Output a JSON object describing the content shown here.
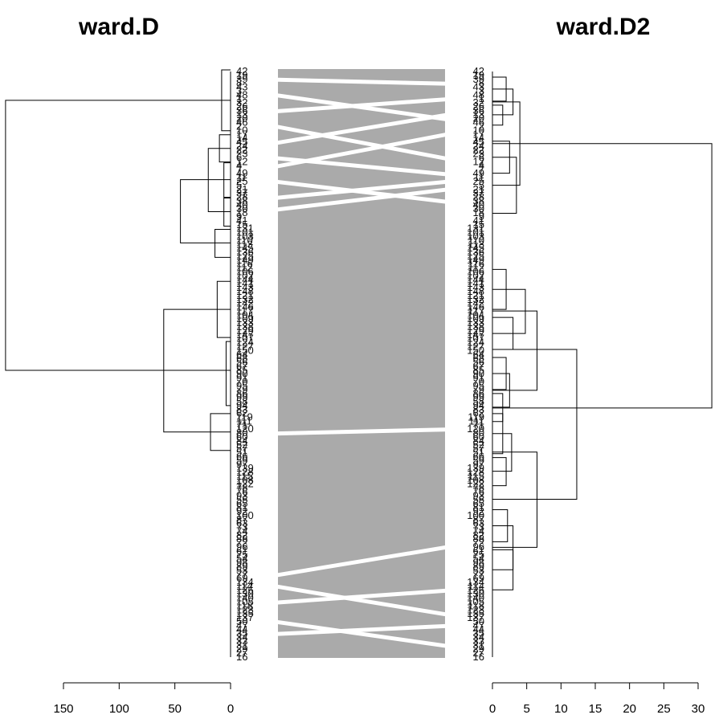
{
  "chart_data": {
    "type": "tanglegram",
    "left": {
      "title": "ward.D",
      "axis": {
        "ticks": [
          150,
          100,
          50,
          0
        ],
        "range": [
          0,
          150
        ],
        "direction": "reversed"
      },
      "branches": [
        {
          "height": 8,
          "from": 1,
          "to": 77
        },
        {
          "height": 10,
          "from": 82,
          "to": 116
        },
        {
          "height": 6,
          "from": 117,
          "to": 160
        },
        {
          "height": 6,
          "from": 161,
          "to": 196
        },
        {
          "height": 14,
          "from": 200,
          "to": 235
        },
        {
          "height": 20,
          "from": 99,
          "to": 178
        },
        {
          "height": 45,
          "from": 138,
          "to": 217
        },
        {
          "height": 12,
          "from": 265,
          "to": 335
        },
        {
          "height": 4,
          "from": 340,
          "to": 420
        },
        {
          "height": 18,
          "from": 430,
          "to": 476
        },
        {
          "height": 60,
          "from": 300,
          "to": 453
        },
        {
          "height": 202,
          "from": 39,
          "to": 376
        }
      ]
    },
    "right": {
      "title": "ward.D2",
      "axis": {
        "ticks": [
          0,
          5,
          10,
          15,
          20,
          25,
          30
        ],
        "range": [
          0,
          30
        ],
        "direction": "normal"
      },
      "branches": [
        {
          "height": 2,
          "from": 10,
          "to": 40
        },
        {
          "height": 1.5,
          "from": 45,
          "to": 70
        },
        {
          "height": 3,
          "from": 25,
          "to": 57
        },
        {
          "height": 2.5,
          "from": 90,
          "to": 130
        },
        {
          "height": 3.5,
          "from": 110,
          "to": 180
        },
        {
          "height": 4,
          "from": 41,
          "to": 145
        },
        {
          "height": 2,
          "from": 250,
          "to": 300
        },
        {
          "height": 3,
          "from": 310,
          "to": 350
        },
        {
          "height": 4.8,
          "from": 275,
          "to": 330
        },
        {
          "height": 2,
          "from": 360,
          "to": 400
        },
        {
          "height": 1.5,
          "from": 405,
          "to": 440
        },
        {
          "height": 2.5,
          "from": 380,
          "to": 422
        },
        {
          "height": 6.5,
          "from": 302,
          "to": 401
        },
        {
          "height": 1.5,
          "from": 430,
          "to": 480
        },
        {
          "height": 2,
          "from": 485,
          "to": 520
        },
        {
          "height": 2.8,
          "from": 455,
          "to": 502
        },
        {
          "height": 2.2,
          "from": 550,
          "to": 590
        },
        {
          "height": 3,
          "from": 600,
          "to": 650
        },
        {
          "height": 3,
          "from": 570,
          "to": 625
        },
        {
          "height": 6.5,
          "from": 478,
          "to": 597
        },
        {
          "height": 12.3,
          "from": 350,
          "to": 537
        },
        {
          "height": 32,
          "from": 93,
          "to": 423
        }
      ]
    },
    "leaves": {
      "left": [
        "42",
        "19",
        "39",
        "8",
        "43",
        "3",
        "48",
        "1",
        "32",
        "26",
        "36",
        "13",
        "20",
        "46",
        "2",
        "10",
        "17",
        "14",
        "45",
        "24",
        "22",
        "23",
        "6",
        "12",
        "4",
        "7",
        "49",
        "11",
        "25",
        "5",
        "21",
        "37",
        "28",
        "38",
        "40",
        "30",
        "18",
        "9",
        "41",
        "15",
        "131",
        "101",
        "103",
        "110",
        "113",
        "145",
        "136",
        "125",
        "149",
        "116",
        "112",
        "106",
        "102",
        "144",
        "141",
        "143",
        "148",
        "121",
        "132",
        "142",
        "146",
        "117",
        "104",
        "109",
        "133",
        "138",
        "129",
        "147",
        "107",
        "124",
        "127",
        "150",
        "64",
        "68",
        "56",
        "67",
        "85",
        "90",
        "91",
        "70",
        "95",
        "79",
        "86",
        "99",
        "58",
        "94",
        "83",
        "62",
        "119",
        "111",
        "71",
        "120",
        "80",
        "60",
        "84",
        "52",
        "57",
        "51",
        "66",
        "59",
        "97",
        "139",
        "128",
        "115",
        "108",
        "122",
        "78",
        "76",
        "93",
        "55",
        "65",
        "81",
        "92",
        "100",
        "87",
        "63",
        "73",
        "74",
        "82",
        "88",
        "72",
        "96",
        "61",
        "75",
        "54",
        "98",
        "89",
        "53",
        "77",
        "69",
        "134",
        "114",
        "126",
        "130",
        "140",
        "105",
        "118",
        "123",
        "135",
        "137",
        "50",
        "47",
        "44",
        "35",
        "34",
        "33",
        "31",
        "29",
        "27",
        "16"
      ],
      "right": [
        "42",
        "19",
        "39",
        "8",
        "43",
        "3",
        "48",
        "1",
        "32",
        "26",
        "36",
        "13",
        "20",
        "46",
        "2",
        "10",
        "17",
        "14",
        "45",
        "24",
        "22",
        "23",
        "6",
        "12",
        "4",
        "7",
        "49",
        "11",
        "25",
        "5",
        "21",
        "37",
        "28",
        "38",
        "40",
        "30",
        "18",
        "9",
        "41",
        "15",
        "131",
        "101",
        "103",
        "110",
        "113",
        "145",
        "136",
        "125",
        "149",
        "116",
        "112",
        "106",
        "102",
        "144",
        "141",
        "143",
        "148",
        "121",
        "132",
        "142",
        "146",
        "117",
        "104",
        "109",
        "133",
        "138",
        "129",
        "147",
        "107",
        "124",
        "127",
        "150",
        "64",
        "68",
        "56",
        "67",
        "85",
        "90",
        "91",
        "70",
        "95",
        "79",
        "86",
        "99",
        "58",
        "94",
        "83",
        "62",
        "119",
        "111",
        "71",
        "120",
        "80",
        "60",
        "84",
        "52",
        "57",
        "51",
        "66",
        "59",
        "97",
        "139",
        "128",
        "115",
        "108",
        "122",
        "78",
        "76",
        "93",
        "55",
        "65",
        "81",
        "92",
        "100",
        "87",
        "63",
        "73",
        "74",
        "82",
        "88",
        "72",
        "96",
        "61",
        "75",
        "54",
        "98",
        "89",
        "53",
        "77",
        "69",
        "134",
        "114",
        "126",
        "130",
        "140",
        "105",
        "118",
        "123",
        "135",
        "137",
        "50",
        "47",
        "44",
        "35",
        "34",
        "33",
        "31",
        "29",
        "27",
        "16"
      ]
    },
    "crossing_links": [
      {
        "from_leaf": 2,
        "to_leaf": 3
      },
      {
        "from_leaf": 6,
        "to_leaf": 12
      },
      {
        "from_leaf": 10,
        "to_leaf": 7
      },
      {
        "from_leaf": 14,
        "to_leaf": 22
      },
      {
        "from_leaf": 18,
        "to_leaf": 11
      },
      {
        "from_leaf": 22,
        "to_leaf": 26
      },
      {
        "from_leaf": 24,
        "to_leaf": 16
      },
      {
        "from_leaf": 28,
        "to_leaf": 33
      },
      {
        "from_leaf": 32,
        "to_leaf": 28
      },
      {
        "from_leaf": 35,
        "to_leaf": 30
      },
      {
        "from_leaf": 92,
        "to_leaf": 91
      },
      {
        "from_leaf": 128,
        "to_leaf": 121
      },
      {
        "from_leaf": 131,
        "to_leaf": 138
      },
      {
        "from_leaf": 135,
        "to_leaf": 132
      },
      {
        "from_leaf": 140,
        "to_leaf": 146
      },
      {
        "from_leaf": 143,
        "to_leaf": 141
      }
    ]
  }
}
